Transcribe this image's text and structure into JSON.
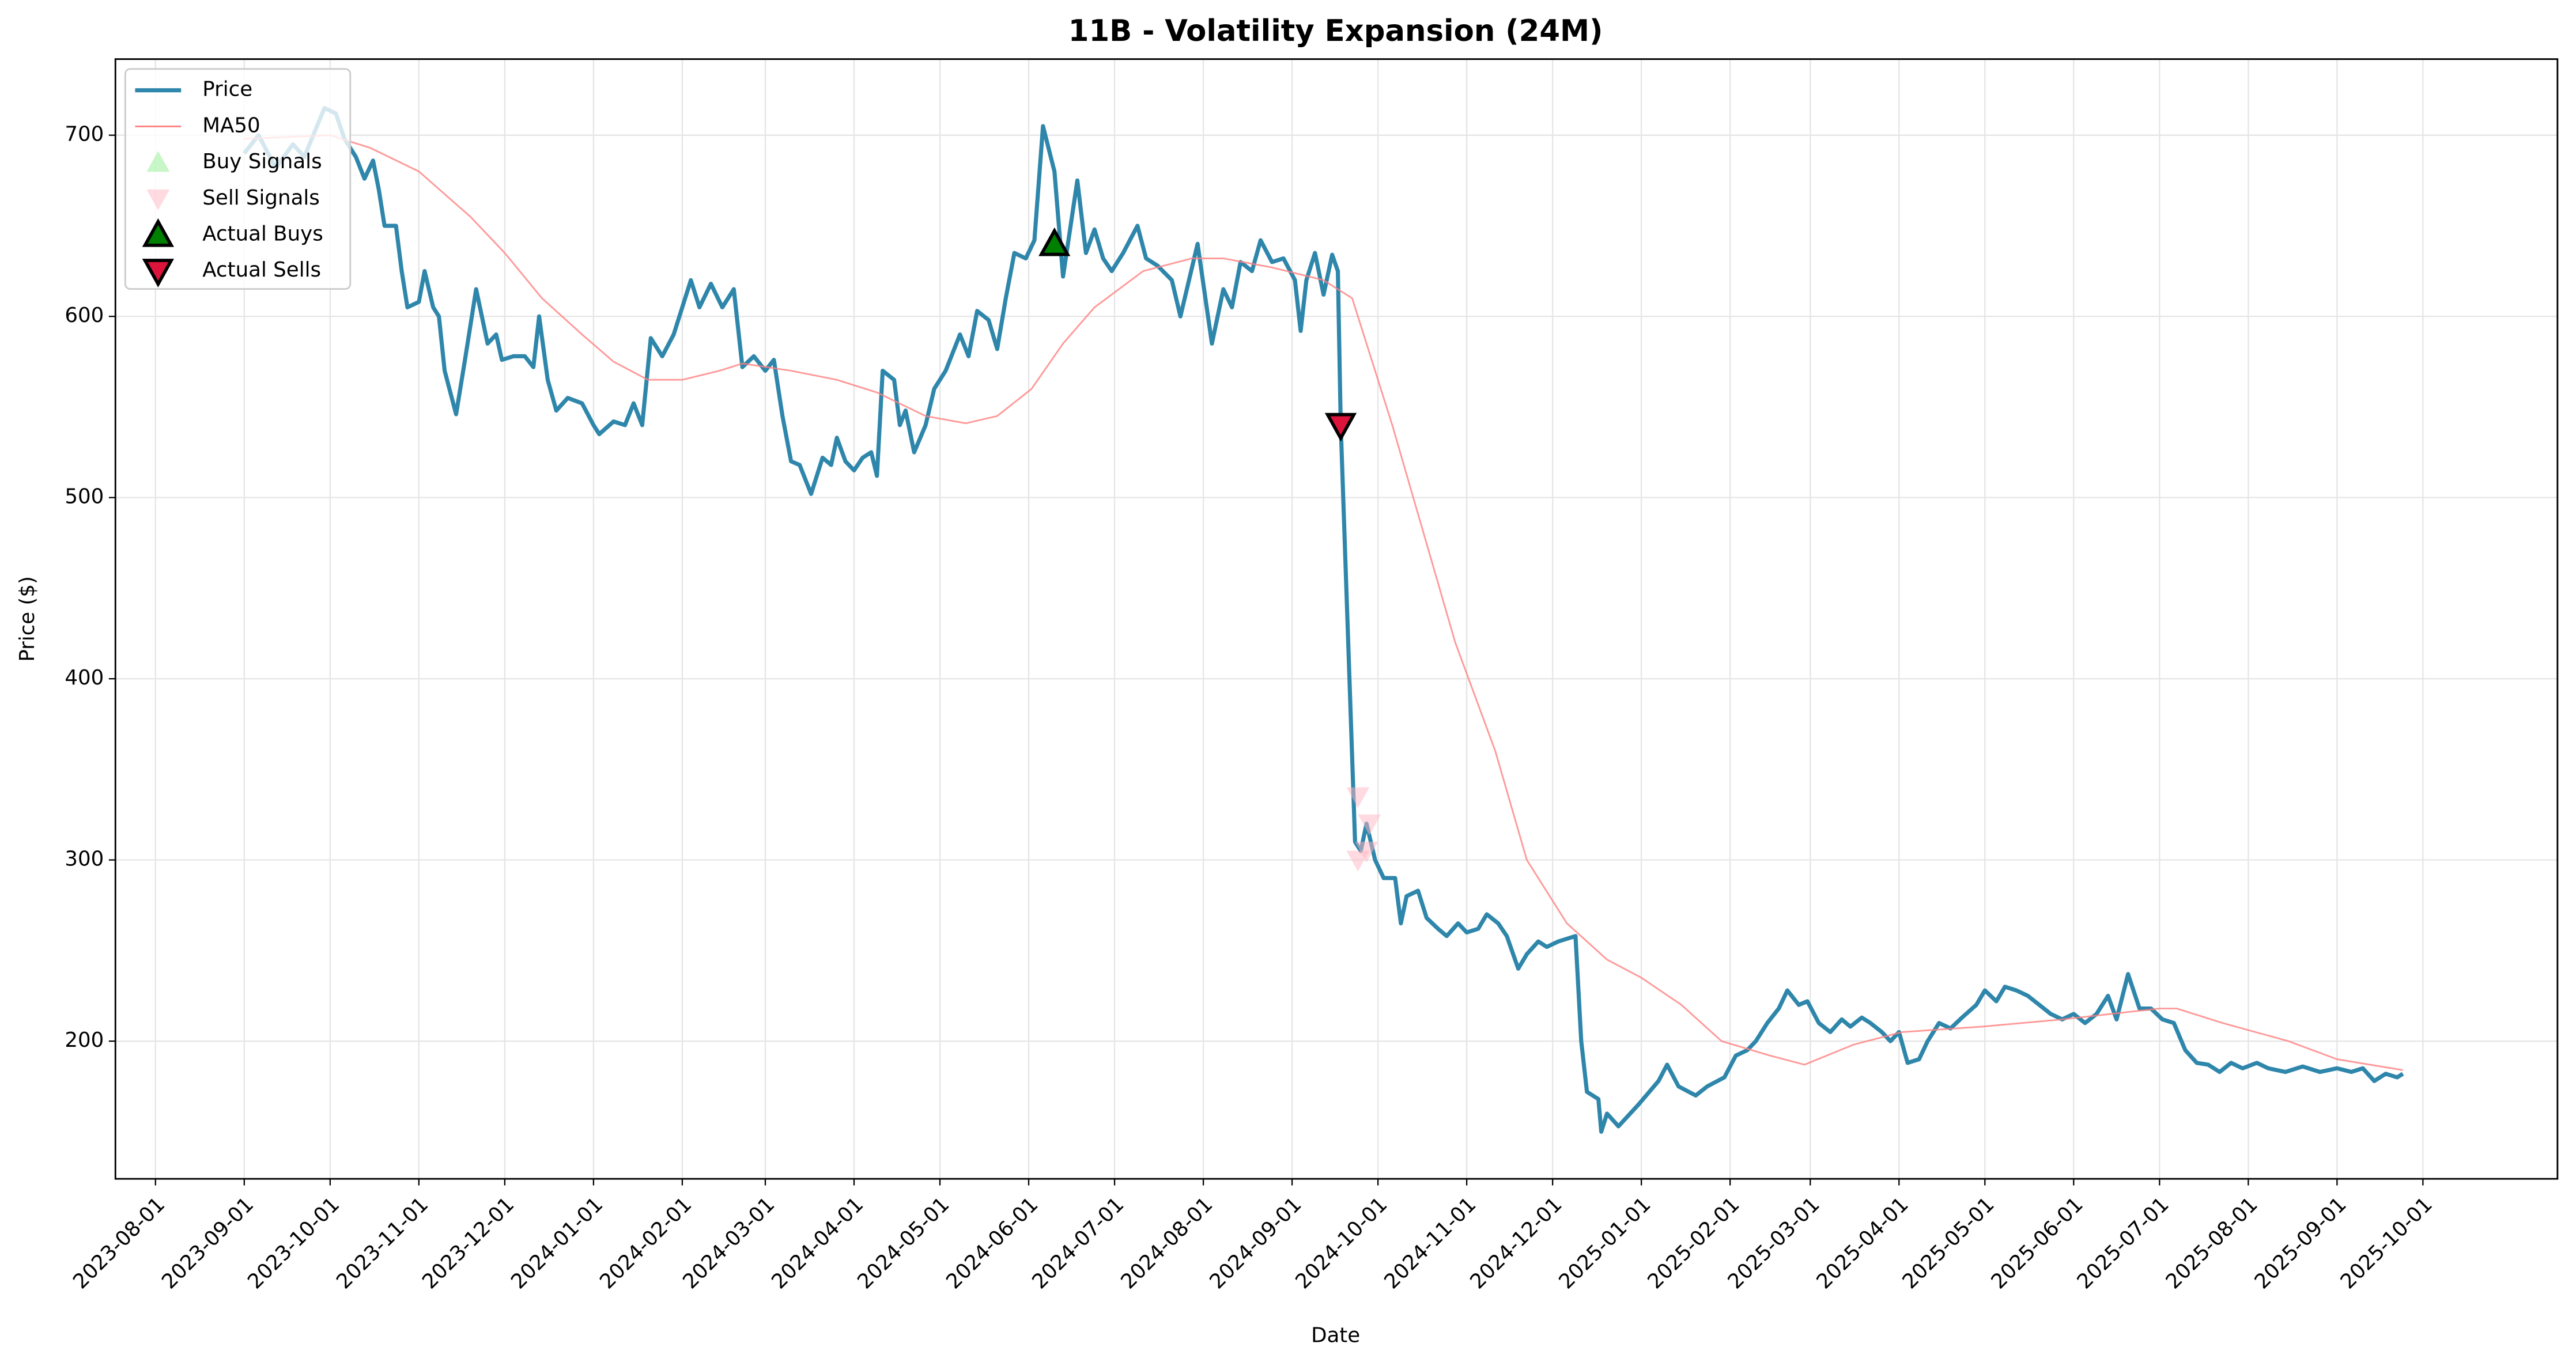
{
  "chart_data": {
    "type": "line",
    "title": "11B - Volatility Expansion (24M)",
    "xlabel": "Date",
    "ylabel": "Price ($)",
    "xlim": [
      "2023-07-18",
      "2025-11-17"
    ],
    "ylim": [
      124,
      742
    ],
    "xticks": [
      "2023-08-01",
      "2023-09-01",
      "2023-10-01",
      "2023-11-01",
      "2023-12-01",
      "2024-01-01",
      "2024-02-01",
      "2024-03-01",
      "2024-04-01",
      "2024-05-01",
      "2024-06-01",
      "2024-07-01",
      "2024-08-01",
      "2024-09-01",
      "2024-10-01",
      "2024-11-01",
      "2024-12-01",
      "2025-01-01",
      "2025-02-01",
      "2025-03-01",
      "2025-04-01",
      "2025-05-01",
      "2025-06-01",
      "2025-07-01",
      "2025-08-01",
      "2025-09-01",
      "2025-10-01"
    ],
    "yticks": [
      200,
      300,
      400,
      500,
      600,
      700
    ],
    "grid": true,
    "legend": "upper left",
    "series": [
      {
        "name": "Price",
        "color": "#2E86AB",
        "style": "line",
        "width": 2.5,
        "x": [
          "2023-09-01",
          "2023-09-06",
          "2023-09-12",
          "2023-09-18",
          "2023-09-22",
          "2023-09-29",
          "2023-10-03",
          "2023-10-06",
          "2023-10-10",
          "2023-10-13",
          "2023-10-16",
          "2023-10-18",
          "2023-10-20",
          "2023-10-24",
          "2023-10-26",
          "2023-10-28",
          "2023-11-01",
          "2023-11-03",
          "2023-11-06",
          "2023-11-08",
          "2023-11-10",
          "2023-11-14",
          "2023-11-17",
          "2023-11-21",
          "2023-11-25",
          "2023-11-28",
          "2023-11-30",
          "2023-12-04",
          "2023-12-08",
          "2023-12-11",
          "2023-12-13",
          "2023-12-16",
          "2023-12-19",
          "2023-12-23",
          "2023-12-28",
          "2024-01-01",
          "2024-01-03",
          "2024-01-08",
          "2024-01-12",
          "2024-01-15",
          "2024-01-18",
          "2024-01-21",
          "2024-01-25",
          "2024-01-29",
          "2024-02-04",
          "2024-02-07",
          "2024-02-11",
          "2024-02-15",
          "2024-02-19",
          "2024-02-22",
          "2024-02-26",
          "2024-03-01",
          "2024-03-04",
          "2024-03-07",
          "2024-03-10",
          "2024-03-13",
          "2024-03-17",
          "2024-03-21",
          "2024-03-24",
          "2024-03-26",
          "2024-03-29",
          "2024-04-01",
          "2024-04-04",
          "2024-04-07",
          "2024-04-09",
          "2024-04-11",
          "2024-04-15",
          "2024-04-17",
          "2024-04-19",
          "2024-04-22",
          "2024-04-26",
          "2024-04-29",
          "2024-05-03",
          "2024-05-08",
          "2024-05-11",
          "2024-05-14",
          "2024-05-18",
          "2024-05-21",
          "2024-05-24",
          "2024-05-27",
          "2024-05-31",
          "2024-06-03",
          "2024-06-06",
          "2024-06-10",
          "2024-06-13",
          "2024-06-18",
          "2024-06-21",
          "2024-06-24",
          "2024-06-27",
          "2024-06-30",
          "2024-07-04",
          "2024-07-09",
          "2024-07-12",
          "2024-07-16",
          "2024-07-21",
          "2024-07-24",
          "2024-07-30",
          "2024-08-04",
          "2024-08-08",
          "2024-08-11",
          "2024-08-14",
          "2024-08-18",
          "2024-08-21",
          "2024-08-25",
          "2024-08-29",
          "2024-09-02",
          "2024-09-04",
          "2024-09-06",
          "2024-09-09",
          "2024-09-12",
          "2024-09-15",
          "2024-09-17",
          "2024-09-18",
          "2024-09-23",
          "2024-09-25",
          "2024-09-27",
          "2024-09-30",
          "2024-10-03",
          "2024-10-07",
          "2024-10-09",
          "2024-10-11",
          "2024-10-15",
          "2024-10-18",
          "2024-10-22",
          "2024-10-25",
          "2024-10-29",
          "2024-11-01",
          "2024-11-05",
          "2024-11-08",
          "2024-11-12",
          "2024-11-15",
          "2024-11-19",
          "2024-11-22",
          "2024-11-26",
          "2024-11-29",
          "2024-12-03",
          "2024-12-09",
          "2024-12-11",
          "2024-12-13",
          "2024-12-17",
          "2024-12-18",
          "2024-12-20",
          "2024-12-24",
          "2024-12-31",
          "2025-01-07",
          "2025-01-10",
          "2025-01-14",
          "2025-01-20",
          "2025-01-24",
          "2025-01-30",
          "2025-02-03",
          "2025-02-07",
          "2025-02-10",
          "2025-02-14",
          "2025-02-18",
          "2025-02-21",
          "2025-02-25",
          "2025-02-28",
          "2025-03-04",
          "2025-03-08",
          "2025-03-12",
          "2025-03-15",
          "2025-03-19",
          "2025-03-22",
          "2025-03-26",
          "2025-03-29",
          "2025-04-01",
          "2025-04-04",
          "2025-04-08",
          "2025-04-11",
          "2025-04-15",
          "2025-04-19",
          "2025-04-23",
          "2025-04-28",
          "2025-05-01",
          "2025-05-05",
          "2025-05-08",
          "2025-05-12",
          "2025-05-16",
          "2025-05-20",
          "2025-05-24",
          "2025-05-28",
          "2025-06-01",
          "2025-06-05",
          "2025-06-09",
          "2025-06-13",
          "2025-06-16",
          "2025-06-20",
          "2025-06-24",
          "2025-06-28",
          "2025-07-02",
          "2025-07-06",
          "2025-07-10",
          "2025-07-14",
          "2025-07-18",
          "2025-07-22",
          "2025-07-26",
          "2025-07-30",
          "2025-08-04",
          "2025-08-08",
          "2025-08-14",
          "2025-08-20",
          "2025-08-26",
          "2025-09-01",
          "2025-09-06",
          "2025-09-10",
          "2025-09-14",
          "2025-09-18",
          "2025-09-22",
          "2025-09-24"
        ],
        "values": [
          690,
          700,
          682,
          695,
          688,
          715,
          712,
          698,
          688,
          676,
          686,
          670,
          650,
          650,
          625,
          605,
          608,
          625,
          605,
          600,
          570,
          546,
          575,
          615,
          585,
          590,
          576,
          578,
          578,
          572,
          600,
          565,
          548,
          555,
          552,
          540,
          535,
          542,
          540,
          552,
          540,
          588,
          578,
          590,
          620,
          605,
          618,
          605,
          615,
          572,
          578,
          570,
          576,
          545,
          520,
          518,
          502,
          522,
          518,
          533,
          520,
          515,
          522,
          525,
          512,
          570,
          565,
          540,
          548,
          525,
          540,
          560,
          570,
          590,
          578,
          603,
          598,
          582,
          610,
          635,
          632,
          642,
          705,
          680,
          622,
          675,
          635,
          648,
          632,
          625,
          635,
          650,
          632,
          628,
          620,
          600,
          640,
          585,
          615,
          605,
          630,
          625,
          642,
          630,
          632,
          620,
          592,
          620,
          635,
          612,
          634,
          625,
          540,
          310,
          305,
          320,
          300,
          290,
          290,
          265,
          280,
          283,
          268,
          262,
          258,
          265,
          260,
          262,
          270,
          265,
          258,
          240,
          248,
          255,
          252,
          255,
          258,
          200,
          172,
          168,
          150,
          160,
          153,
          165,
          178,
          187,
          175,
          170,
          175,
          180,
          192,
          195,
          200,
          210,
          218,
          228,
          220,
          222,
          210,
          205,
          212,
          208,
          213,
          210,
          205,
          200,
          205,
          188,
          190,
          200,
          210,
          207,
          213,
          220,
          228,
          222,
          230,
          228,
          225,
          220,
          215,
          212,
          215,
          210,
          215,
          225,
          212,
          237,
          218,
          218,
          212,
          210,
          195,
          188,
          187,
          183,
          188,
          185,
          188,
          185,
          183,
          186,
          183,
          185,
          183,
          185,
          178,
          182,
          180,
          182
        ]
      },
      {
        "name": "MA50",
        "color": "#ff8080",
        "style": "line",
        "width": 1,
        "x": [
          "2023-09-01",
          "2023-10-01",
          "2023-10-15",
          "2023-11-01",
          "2023-11-19",
          "2023-12-01",
          "2023-12-14",
          "2023-12-28",
          "2024-01-08",
          "2024-01-20",
          "2024-02-01",
          "2024-02-14",
          "2024-02-22",
          "2024-03-10",
          "2024-03-26",
          "2024-04-09",
          "2024-04-26",
          "2024-05-10",
          "2024-05-21",
          "2024-06-02",
          "2024-06-13",
          "2024-06-24",
          "2024-07-11",
          "2024-07-28",
          "2024-08-08",
          "2024-08-25",
          "2024-09-12",
          "2024-09-22",
          "2024-09-28",
          "2024-10-06",
          "2024-10-17",
          "2024-10-28",
          "2024-11-11",
          "2024-11-22",
          "2024-12-06",
          "2024-12-20",
          "2025-01-01",
          "2025-01-15",
          "2025-01-29",
          "2025-02-15",
          "2025-02-27",
          "2025-03-16",
          "2025-04-02",
          "2025-04-30",
          "2025-05-28",
          "2025-06-14",
          "2025-07-01",
          "2025-07-07",
          "2025-07-23",
          "2025-08-15",
          "2025-09-01",
          "2025-09-24"
        ],
        "values": [
          698,
          700,
          693,
          680,
          655,
          635,
          610,
          590,
          575,
          565,
          565,
          570,
          574,
          570,
          565,
          558,
          545,
          541,
          545,
          560,
          585,
          605,
          625,
          632,
          632,
          627,
          620,
          610,
          580,
          540,
          480,
          420,
          360,
          300,
          265,
          245,
          235,
          220,
          200,
          192,
          187,
          198,
          205,
          208,
          212,
          215,
          218,
          218,
          210,
          200,
          190,
          184
        ]
      },
      {
        "name": "Buy Signals",
        "color": "#90ee90",
        "style": "markers",
        "marker": "triangle-up",
        "x": [
          "2024-06-10"
        ],
        "values": [
          640
        ]
      },
      {
        "name": "Sell Signals",
        "color": "#ffb6c1",
        "style": "markers",
        "marker": "triangle-down",
        "x": [
          "2024-09-18",
          "2024-09-24",
          "2024-09-24",
          "2024-09-27",
          "2024-09-28"
        ],
        "values": [
          540,
          335,
          300,
          305,
          320
        ]
      },
      {
        "name": "Actual Buys",
        "color": "#008000",
        "style": "markers",
        "marker": "triangle-up",
        "edge": "#000000",
        "x": [
          "2024-06-10"
        ],
        "values": [
          640
        ]
      },
      {
        "name": "Actual Sells",
        "color": "#dc143c",
        "style": "markers",
        "marker": "triangle-down",
        "edge": "#000000",
        "x": [
          "2024-09-18"
        ],
        "values": [
          540
        ]
      }
    ]
  }
}
